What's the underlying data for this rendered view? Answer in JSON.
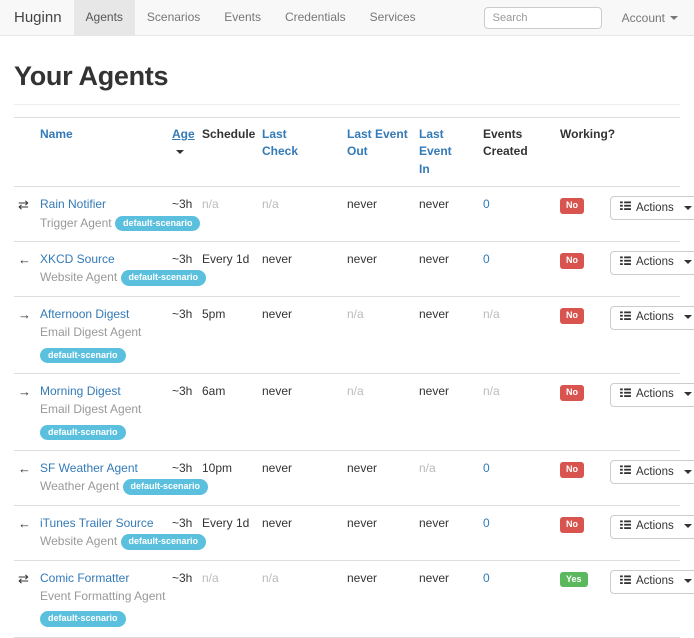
{
  "navbar": {
    "brand": "Huginn",
    "items": [
      {
        "label": "Agents",
        "active": true
      },
      {
        "label": "Scenarios",
        "active": false
      },
      {
        "label": "Events",
        "active": false
      },
      {
        "label": "Credentials",
        "active": false
      },
      {
        "label": "Services",
        "active": false
      }
    ],
    "search_placeholder": "Search",
    "account_label": "Account"
  },
  "page": {
    "title": "Your Agents"
  },
  "table": {
    "headers": [
      {
        "label": "Name",
        "link": true
      },
      {
        "label": "Age",
        "link": true,
        "sorted": "desc"
      },
      {
        "label": "Schedule",
        "link": false
      },
      {
        "label": "Last\nCheck",
        "link": true
      },
      {
        "label": "Last Event\nOut",
        "link": true
      },
      {
        "label": "Last Event\nIn",
        "link": true
      },
      {
        "label": "Events\nCreated",
        "link": false
      },
      {
        "label": "Working?",
        "link": false
      }
    ],
    "actions_label": "Actions",
    "muted_value": "n/a",
    "working_yes_label": "Yes",
    "rows": [
      {
        "icon": "⇄",
        "icon_name": "exchange-icon",
        "name": "Rain Notifier",
        "type": "Trigger Agent",
        "badge": "default-scenario",
        "badge_inline": true,
        "age": "~3h",
        "schedule": "n/a",
        "last_check": "n/a",
        "last_event_out": "never",
        "last_event_in": "never",
        "events_created": "0",
        "working": "No"
      },
      {
        "icon": "←",
        "icon_name": "arrow-left-icon",
        "name": "XKCD Source",
        "type": "Website Agent",
        "badge": "default-scenario",
        "badge_inline": true,
        "age": "~3h",
        "schedule": "Every 1d",
        "last_check": "never",
        "last_event_out": "never",
        "last_event_in": "never",
        "events_created": "0",
        "working": "No"
      },
      {
        "icon": "→",
        "icon_name": "arrow-right-icon",
        "name": "Afternoon Digest",
        "type": "Email Digest Agent",
        "badge": "default-scenario",
        "badge_inline": false,
        "age": "~3h",
        "schedule": "5pm",
        "last_check": "never",
        "last_event_out": "n/a",
        "last_event_in": "never",
        "events_created": "n/a",
        "working": "No"
      },
      {
        "icon": "→",
        "icon_name": "arrow-right-icon",
        "name": "Morning Digest",
        "type": "Email Digest Agent",
        "badge": "default-scenario",
        "badge_inline": false,
        "age": "~3h",
        "schedule": "6am",
        "last_check": "never",
        "last_event_out": "n/a",
        "last_event_in": "never",
        "events_created": "n/a",
        "working": "No"
      },
      {
        "icon": "←",
        "icon_name": "arrow-left-icon",
        "name": "SF Weather Agent",
        "type": "Weather Agent",
        "badge": "default-scenario",
        "badge_inline": true,
        "age": "~3h",
        "schedule": "10pm",
        "last_check": "never",
        "last_event_out": "never",
        "last_event_in": "n/a",
        "events_created": "0",
        "working": "No"
      },
      {
        "icon": "←",
        "icon_name": "arrow-left-icon",
        "name": "iTunes Trailer Source",
        "type": "Website Agent",
        "badge": "default-scenario",
        "badge_inline": true,
        "age": "~3h",
        "schedule": "Every 1d",
        "last_check": "never",
        "last_event_out": "never",
        "last_event_in": "never",
        "events_created": "0",
        "working": "No"
      },
      {
        "icon": "⇄",
        "icon_name": "exchange-icon",
        "name": "Comic Formatter",
        "type": "Event Formatting Agent",
        "badge": "default-scenario",
        "badge_inline": false,
        "age": "~3h",
        "schedule": "n/a",
        "last_check": "n/a",
        "last_event_out": "never",
        "last_event_in": "never",
        "events_created": "0",
        "working": "Yes"
      }
    ]
  },
  "colors": {
    "link_blue": "#337ab7",
    "scenario_badge": "#5bc0de",
    "working_no": "#d9534f",
    "working_yes": "#5cb85c",
    "navbar_bg": "#f8f8f8",
    "active_nav_bg": "#e7e7e7",
    "muted_text": "#bbbbbb"
  }
}
